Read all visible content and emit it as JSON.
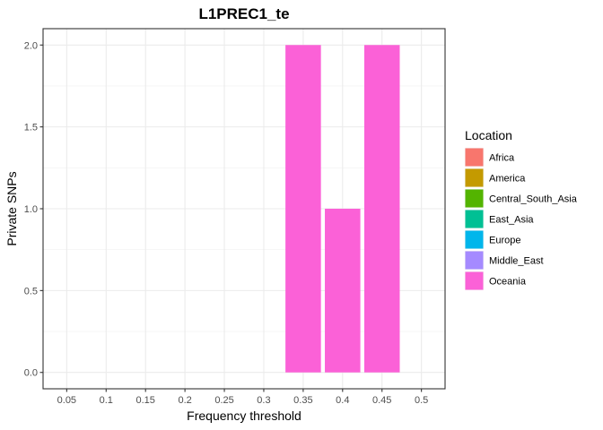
{
  "chart_data": {
    "type": "bar",
    "title": "L1PREC1_te",
    "xlabel": "Frequency threshold",
    "ylabel": "Private SNPs",
    "categories": [
      "0.05",
      "0.1",
      "0.15",
      "0.2",
      "0.25",
      "0.3",
      "0.35",
      "0.4",
      "0.45",
      "0.5"
    ],
    "series": [
      {
        "name": "Africa",
        "color": "#F8766D",
        "values": [
          0,
          0,
          0,
          0,
          0,
          0,
          0,
          0,
          0,
          0
        ]
      },
      {
        "name": "America",
        "color": "#C49A00",
        "values": [
          0,
          0,
          0,
          0,
          0,
          0,
          0,
          0,
          0,
          0
        ]
      },
      {
        "name": "Central_South_Asia",
        "color": "#53B400",
        "values": [
          0,
          0,
          0,
          0,
          0,
          0,
          0,
          0,
          0,
          0
        ]
      },
      {
        "name": "East_Asia",
        "color": "#00C094",
        "values": [
          0,
          0,
          0,
          0,
          0,
          0,
          0,
          0,
          0,
          0
        ]
      },
      {
        "name": "Europe",
        "color": "#00B6EB",
        "values": [
          0,
          0,
          0,
          0,
          0,
          0,
          0,
          0,
          0,
          0
        ]
      },
      {
        "name": "Middle_East",
        "color": "#A58AFF",
        "values": [
          0,
          0,
          0,
          0,
          0,
          0,
          0,
          0,
          0,
          0
        ]
      },
      {
        "name": "Oceania",
        "color": "#FB61D7",
        "values": [
          0,
          0,
          0,
          0,
          0,
          0,
          2,
          1,
          2,
          0
        ]
      }
    ],
    "ylim": [
      0,
      2
    ],
    "yticks": [
      "0.0",
      "0.5",
      "1.0",
      "1.5",
      "2.0"
    ],
    "grid": true,
    "legend": {
      "title": "Location",
      "position": "right"
    }
  }
}
